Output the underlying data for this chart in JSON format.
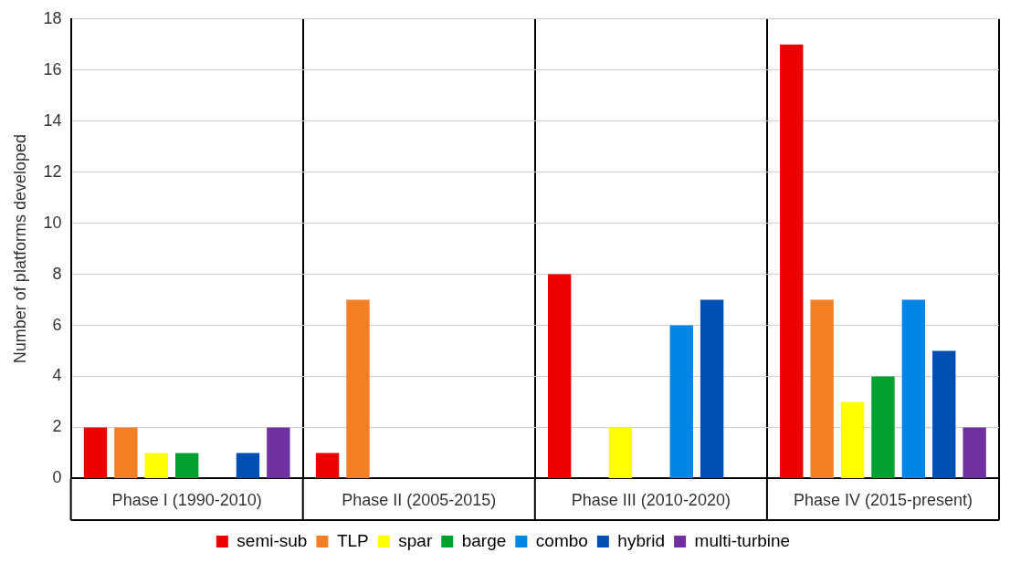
{
  "chart_data": {
    "type": "bar",
    "ylabel": "Number of platforms developed",
    "categories": [
      "Phase I (1990-2010)",
      "Phase II (2005-2015)",
      "Phase III (2010-2020)",
      "Phase IV (2015-present)"
    ],
    "series": [
      {
        "name": "semi-sub",
        "color": "#ee0000",
        "values": [
          2,
          1,
          8,
          17
        ]
      },
      {
        "name": "TLP",
        "color": "#f47f24",
        "values": [
          2,
          7,
          0,
          7
        ]
      },
      {
        "name": "spar",
        "color": "#ffff00",
        "values": [
          1,
          0,
          2,
          3
        ]
      },
      {
        "name": "barge",
        "color": "#00a031",
        "values": [
          1,
          0,
          0,
          4
        ]
      },
      {
        "name": "combo",
        "color": "#0086e6",
        "values": [
          0,
          0,
          6,
          7
        ]
      },
      {
        "name": "hybrid",
        "color": "#0050b4",
        "values": [
          1,
          0,
          7,
          5
        ]
      },
      {
        "name": "multi-turbine",
        "color": "#7030a0",
        "values": [
          2,
          0,
          0,
          2
        ]
      }
    ],
    "ylim": [
      0,
      18
    ],
    "yticks": [
      0,
      2,
      4,
      6,
      8,
      10,
      12,
      14,
      16,
      18
    ],
    "grid": true,
    "legend": "bottom"
  }
}
